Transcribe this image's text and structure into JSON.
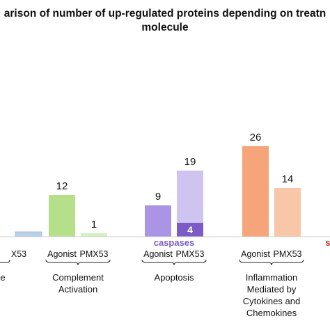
{
  "chart_data": {
    "type": "bar",
    "title_lines": [
      "arison of number of up-regulated proteins depending on treatn",
      "molecule"
    ],
    "tick_labels": [
      "Agonist",
      "PMX53"
    ],
    "groups": [
      {
        "name_lines": [
          "e"
        ],
        "bars": [
          {
            "series": "Agonist",
            "value": null,
            "label": "",
            "color": "#b9cfe6",
            "visible": false
          },
          {
            "series": "PMX53",
            "value": 0.3,
            "label": "",
            "color": "#b9cfe6",
            "visible": true
          }
        ],
        "tick_text": [
          "",
          "X53"
        ]
      },
      {
        "name_lines": [
          "Complement",
          "Activation"
        ],
        "bars": [
          {
            "series": "Agonist",
            "value": 12,
            "label": "12",
            "color": "#b5e089"
          },
          {
            "series": "PMX53",
            "value": 1,
            "label": "1",
            "color": "#d6efc0"
          }
        ],
        "tick_text": [
          "Agonist",
          "PMX53"
        ]
      },
      {
        "name_lines": [
          "Apoptosis"
        ],
        "bars": [
          {
            "series": "Agonist",
            "value": 9,
            "label": "9",
            "color": "#a995e4"
          },
          {
            "series": "PMX53",
            "value": 19,
            "label": "19",
            "color": "#cfc4f0",
            "sub": {
              "value": 4,
              "label": "4",
              "color": "#7b5cc4",
              "annotation": "caspases"
            }
          }
        ],
        "tick_text": [
          "Agonist",
          "PMX53"
        ]
      },
      {
        "name_lines": [
          "Inflammation",
          "Mediated by",
          "Cytokines and",
          "Chemokines"
        ],
        "bars": [
          {
            "series": "Agonist",
            "value": 26,
            "label": "26",
            "color": "#f6a57a"
          },
          {
            "series": "PMX53",
            "value": 14,
            "label": "14",
            "color": "#f8c7a7"
          }
        ],
        "tick_text": [
          "Agonist",
          "PMX53"
        ]
      }
    ],
    "partial_right_mark": {
      "text": "s",
      "color": "#c0392b"
    },
    "ylim": [
      0,
      30
    ]
  }
}
